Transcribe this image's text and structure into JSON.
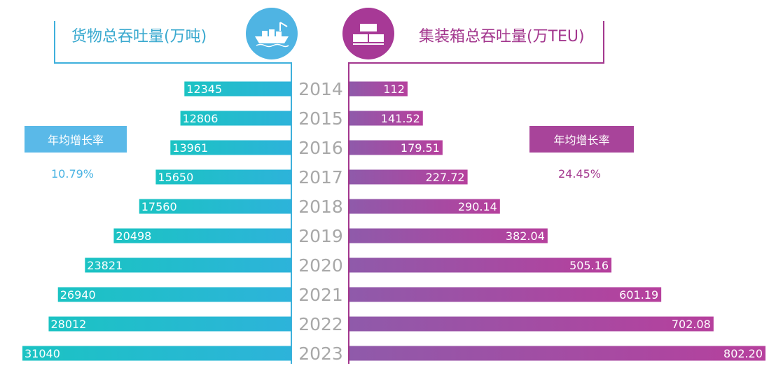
{
  "chart_data": {
    "type": "bar",
    "categories": [
      "2014",
      "2015",
      "2016",
      "2017",
      "2018",
      "2019",
      "2020",
      "2021",
      "2022",
      "2023"
    ],
    "series": [
      {
        "name": "货物总吞吐量(万吨)",
        "values": [
          12345,
          12806,
          13961,
          15650,
          17560,
          20498,
          23821,
          26940,
          28012,
          31040
        ],
        "labels": [
          "12345",
          "12806",
          "13961",
          "15650",
          "17560",
          "20498",
          "23821",
          "26940",
          "28012",
          "31040"
        ],
        "direction": "left",
        "color_start": "#19c0c4",
        "color_end": "#2ab6d8"
      },
      {
        "name": "集装箱总吞吐量(万TEU)",
        "values": [
          112,
          141.52,
          179.51,
          227.72,
          290.14,
          382.04,
          505.16,
          601.19,
          702.08,
          802.2
        ],
        "labels": [
          "112",
          "141.52",
          "179.51",
          "227.72",
          "290.14",
          "382.04",
          "505.16",
          "601.19",
          "702.08",
          "802.20"
        ],
        "direction": "right",
        "color_start": "#8e5aa9",
        "color_end": "#b5409d"
      }
    ],
    "annotations": [
      {
        "label": "年均增长率",
        "value": "10.79%"
      },
      {
        "label": "年均增长率",
        "value": "24.45%"
      }
    ]
  },
  "header": {
    "left_title": "货物总吞吐量(万吨)",
    "right_title": "集装箱总吞吐量(万TEU)"
  },
  "growth": {
    "left_label": "年均增长率",
    "left_value": "10.79%",
    "right_label": "年均增长率",
    "right_value": "24.45%"
  },
  "icons": {
    "left": "cargo-ship-icon",
    "right": "containers-icon"
  },
  "colors": {
    "teal": "#2ab6d8",
    "purple": "#a3378e",
    "year_text": "#a8a8a8"
  }
}
